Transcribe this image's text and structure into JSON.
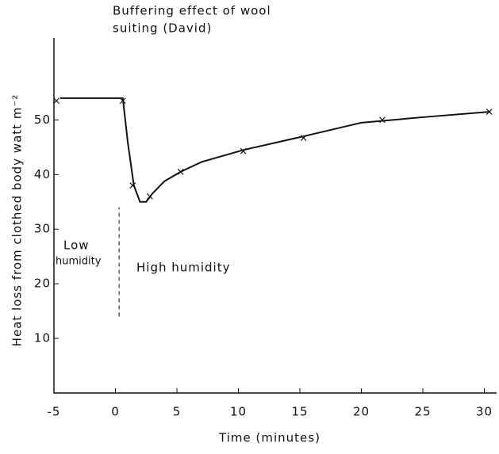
{
  "chart_data": {
    "type": "line",
    "title": [
      "Buffering effect of wool",
      "suiting (David)"
    ],
    "x_label": "Time (minutes)",
    "y_label": "Heat loss from clothed body watt m⁻²",
    "annotations": [
      "Low",
      "humidity",
      "High humidity"
    ],
    "xlim": [
      -5,
      31
    ],
    "xticks": [
      -5,
      0,
      5,
      10,
      15,
      20,
      25,
      30
    ],
    "ylim": [
      0,
      65
    ],
    "yticks": [
      10,
      20,
      30,
      40,
      50
    ],
    "divider_x": 0.3,
    "divider_y": [
      14,
      34
    ],
    "series": [
      {
        "color": "#111",
        "marker": "line",
        "x": [
          -4.5,
          0.6,
          1.0,
          1.5,
          2.0,
          2.5,
          3,
          4,
          5.3,
          7,
          10.4,
          15.3,
          20,
          25,
          30.5
        ],
        "values": [
          54,
          54,
          46,
          38,
          35,
          35,
          36.5,
          38.8,
          40.5,
          42.3,
          44.5,
          47,
          49.5,
          50.5,
          51.5
        ]
      },
      {
        "color": "#111",
        "marker": "x",
        "x": [
          -4.8,
          0.6,
          1.4,
          2.8,
          5.3,
          10.4,
          15.3,
          21.7,
          30.4
        ],
        "values": [
          53.5,
          53.5,
          38,
          36,
          40.5,
          44.3,
          46.7,
          50,
          51.5
        ]
      }
    ]
  }
}
